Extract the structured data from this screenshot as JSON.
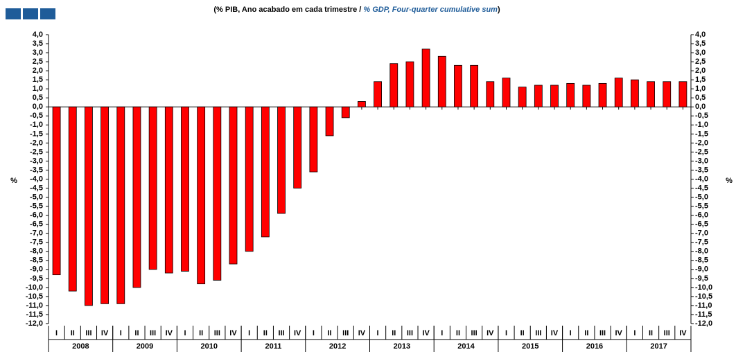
{
  "chart_data": {
    "type": "bar",
    "title_parts": [
      {
        "text": "(% PIB, Ano acabado em cada trimestre / ",
        "color": "#000000"
      },
      {
        "text": "% GDP, Four-quarter cumulative sum",
        "color": "#1f5c99"
      },
      {
        "text": ")",
        "color": "#000000"
      }
    ],
    "ylabel": "%",
    "categories": [
      "I",
      "II",
      "III",
      "IV",
      "I",
      "II",
      "III",
      "IV",
      "I",
      "II",
      "III",
      "IV",
      "I",
      "II",
      "III",
      "IV",
      "I",
      "II",
      "III",
      "IV",
      "I",
      "II",
      "III",
      "IV",
      "I",
      "II",
      "III",
      "IV",
      "I",
      "II",
      "III",
      "IV",
      "I",
      "II",
      "III",
      "IV",
      "I",
      "II",
      "III",
      "IV"
    ],
    "groups": [
      "2008",
      "2009",
      "2010",
      "2011",
      "2012",
      "2013",
      "2014",
      "2015",
      "2016",
      "2017"
    ],
    "values": [
      -9.3,
      -10.2,
      -11.0,
      -10.9,
      -10.9,
      -10.0,
      -9.0,
      -9.2,
      -9.1,
      -9.8,
      -9.6,
      -8.7,
      -8.0,
      -7.2,
      -5.9,
      -4.5,
      -3.6,
      -1.6,
      -0.6,
      0.3,
      1.4,
      2.4,
      2.5,
      3.2,
      2.8,
      2.3,
      2.3,
      1.4,
      1.6,
      1.1,
      1.2,
      1.2,
      1.3,
      1.2,
      1.3,
      1.6,
      1.5,
      1.4,
      1.4,
      1.4
    ],
    "color": "#ff0000",
    "ylim": [
      -12,
      4
    ],
    "yticks": [
      {
        "value": 4,
        "label": "4,0"
      },
      {
        "value": 3.5,
        "label": "3,5"
      },
      {
        "value": 3,
        "label": "3,0"
      },
      {
        "value": 2.5,
        "label": "2,5"
      },
      {
        "value": 2,
        "label": "2,0"
      },
      {
        "value": 1.5,
        "label": "1,5"
      },
      {
        "value": 1,
        "label": "1,0"
      },
      {
        "value": 0.5,
        "label": "0,5"
      },
      {
        "value": 0,
        "label": "0,0"
      },
      {
        "value": -0.5,
        "label": "-0,5"
      },
      {
        "value": -1,
        "label": "-1,0"
      },
      {
        "value": -1.5,
        "label": "-1,5"
      },
      {
        "value": -2,
        "label": "-2,0"
      },
      {
        "value": -2.5,
        "label": "-2,5"
      },
      {
        "value": -3,
        "label": "-3,0"
      },
      {
        "value": -3.5,
        "label": "-3,5"
      },
      {
        "value": -4,
        "label": "-4,0"
      },
      {
        "value": -4.5,
        "label": "-4,5"
      },
      {
        "value": -5,
        "label": "-5,0"
      },
      {
        "value": -5.5,
        "label": "-5,5"
      },
      {
        "value": -6,
        "label": "-6,0"
      },
      {
        "value": -6.5,
        "label": "-6,5"
      },
      {
        "value": -7,
        "label": "-7,0"
      },
      {
        "value": -7.5,
        "label": "-7,5"
      },
      {
        "value": -8,
        "label": "-8,0"
      },
      {
        "value": -8.5,
        "label": "-8,5"
      },
      {
        "value": -9,
        "label": "-9,0"
      },
      {
        "value": -9.5,
        "label": "-9,5"
      },
      {
        "value": -10,
        "label": "-10,0"
      },
      {
        "value": -10.5,
        "label": "-10,5"
      },
      {
        "value": -11,
        "label": "-11,0"
      },
      {
        "value": -11.5,
        "label": "-11,5"
      },
      {
        "value": -12,
        "label": "-12,0"
      }
    ],
    "grid": false
  }
}
